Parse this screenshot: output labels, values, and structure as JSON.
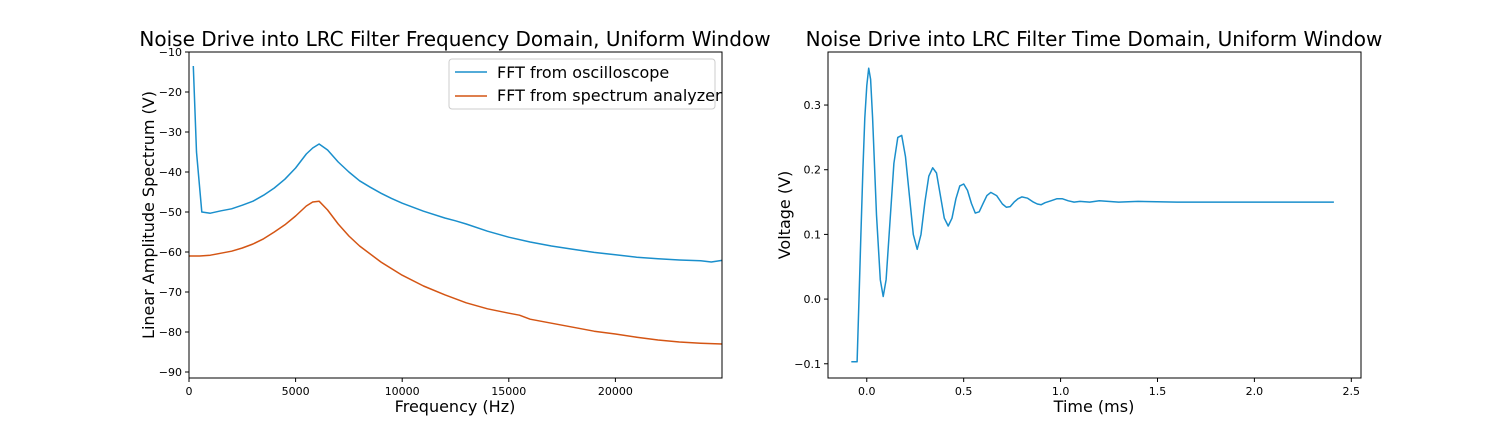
{
  "chart_data": [
    {
      "type": "line",
      "title": "Noise Drive into LRC Filter Frequency Domain, Uniform Window",
      "xlabel": "Frequency (Hz)",
      "ylabel": "Linear Amplitude Spectrum (V)",
      "xlim": [
        0,
        25000
      ],
      "ylim": [
        -91.5,
        -10
      ],
      "xticks": [
        0,
        5000,
        10000,
        15000,
        20000
      ],
      "xtick_labels": [
        "0",
        "5000",
        "10000",
        "15000",
        "20000"
      ],
      "yticks": [
        -90,
        -80,
        -70,
        -60,
        -50,
        -40,
        -30,
        -20,
        -10
      ],
      "ytick_labels": [
        "−90",
        "−80",
        "−70",
        "−60",
        "−50",
        "−40",
        "−30",
        "−20",
        "−10"
      ],
      "grid": false,
      "legend_position": "top-right",
      "series": [
        {
          "name": "FFT from oscilloscope",
          "color": "#1a8fcc",
          "x": [
            200,
            350,
            600,
            1000,
            1500,
            2000,
            2500,
            3000,
            3500,
            4000,
            4500,
            5000,
            5500,
            5800,
            6100,
            6500,
            7000,
            7500,
            8000,
            8500,
            9000,
            9500,
            10000,
            11000,
            12000,
            12500,
            13000,
            14000,
            15000,
            16000,
            17000,
            18000,
            19000,
            20000,
            21000,
            22000,
            23000,
            24000,
            24500,
            25000
          ],
          "y": [
            -13.5,
            -35,
            -50,
            -50.3,
            -49.7,
            -49.2,
            -48.3,
            -47.3,
            -45.8,
            -44,
            -41.8,
            -39,
            -35.5,
            -34,
            -33,
            -34.5,
            -37.5,
            -40,
            -42.2,
            -43.8,
            -45.3,
            -46.6,
            -47.8,
            -49.8,
            -51.5,
            -52.2,
            -53,
            -54.8,
            -56.3,
            -57.5,
            -58.5,
            -59.3,
            -60.1,
            -60.7,
            -61.3,
            -61.7,
            -62,
            -62.2,
            -62.5,
            -62.1
          ]
        },
        {
          "name": "FFT from spectrum analyzer",
          "color": "#d45514",
          "x": [
            0,
            500,
            1000,
            1500,
            2000,
            2500,
            3000,
            3500,
            4000,
            4500,
            5000,
            5500,
            5800,
            6100,
            6500,
            7000,
            7500,
            8000,
            9000,
            10000,
            11000,
            12000,
            13000,
            14000,
            15000,
            15500,
            16000,
            17000,
            18000,
            19000,
            20000,
            21000,
            22000,
            23000,
            24000,
            25000
          ],
          "y": [
            -61,
            -61,
            -60.8,
            -60.3,
            -59.8,
            -59,
            -58,
            -56.7,
            -55,
            -53.2,
            -51,
            -48.5,
            -47.5,
            -47.3,
            -49.5,
            -53,
            -56,
            -58.5,
            -62.5,
            -65.8,
            -68.5,
            -70.7,
            -72.7,
            -74.2,
            -75.3,
            -75.8,
            -76.8,
            -77.8,
            -78.8,
            -79.8,
            -80.5,
            -81.3,
            -82,
            -82.5,
            -82.8,
            -83
          ]
        }
      ]
    },
    {
      "type": "line",
      "title": "Noise Drive into LRC Filter Time Domain, Uniform Window",
      "xlabel": "Time (ms)",
      "ylabel": "Voltage (V)",
      "xlim": [
        -0.2,
        2.55
      ],
      "ylim": [
        -0.122,
        0.382
      ],
      "xticks": [
        0.0,
        0.5,
        1.0,
        1.5,
        2.0,
        2.5
      ],
      "xtick_labels": [
        "0.0",
        "0.5",
        "1.0",
        "1.5",
        "2.0",
        "2.5"
      ],
      "yticks": [
        -0.1,
        0.0,
        0.1,
        0.2,
        0.3
      ],
      "ytick_labels": [
        "−0.1",
        "0.0",
        "0.1",
        "0.2",
        "0.3"
      ],
      "grid": false,
      "series": [
        {
          "color": "#1a8fcc",
          "x": [
            -0.08,
            -0.05,
            -0.04,
            -0.03,
            -0.02,
            -0.01,
            0.0,
            0.01,
            0.02,
            0.03,
            0.05,
            0.07,
            0.085,
            0.1,
            0.12,
            0.14,
            0.16,
            0.18,
            0.2,
            0.22,
            0.24,
            0.26,
            0.28,
            0.3,
            0.32,
            0.34,
            0.36,
            0.38,
            0.4,
            0.42,
            0.44,
            0.46,
            0.48,
            0.5,
            0.52,
            0.54,
            0.56,
            0.58,
            0.6,
            0.62,
            0.64,
            0.67,
            0.7,
            0.72,
            0.74,
            0.76,
            0.78,
            0.8,
            0.83,
            0.86,
            0.88,
            0.9,
            0.92,
            0.95,
            0.98,
            1.01,
            1.04,
            1.07,
            1.1,
            1.15,
            1.2,
            1.3,
            1.4,
            1.6,
            1.8,
            2.0,
            2.2,
            2.41
          ],
          "y": [
            -0.097,
            -0.097,
            0.0,
            0.1,
            0.2,
            0.28,
            0.33,
            0.357,
            0.34,
            0.28,
            0.13,
            0.03,
            0.004,
            0.03,
            0.12,
            0.21,
            0.25,
            0.253,
            0.22,
            0.16,
            0.1,
            0.077,
            0.1,
            0.15,
            0.19,
            0.203,
            0.195,
            0.16,
            0.125,
            0.113,
            0.125,
            0.155,
            0.175,
            0.178,
            0.168,
            0.148,
            0.133,
            0.135,
            0.148,
            0.16,
            0.165,
            0.16,
            0.147,
            0.142,
            0.143,
            0.15,
            0.155,
            0.158,
            0.156,
            0.15,
            0.147,
            0.146,
            0.149,
            0.152,
            0.155,
            0.155,
            0.152,
            0.15,
            0.151,
            0.15,
            0.152,
            0.15,
            0.151,
            0.15,
            0.15,
            0.15,
            0.15,
            0.15
          ]
        }
      ]
    }
  ]
}
